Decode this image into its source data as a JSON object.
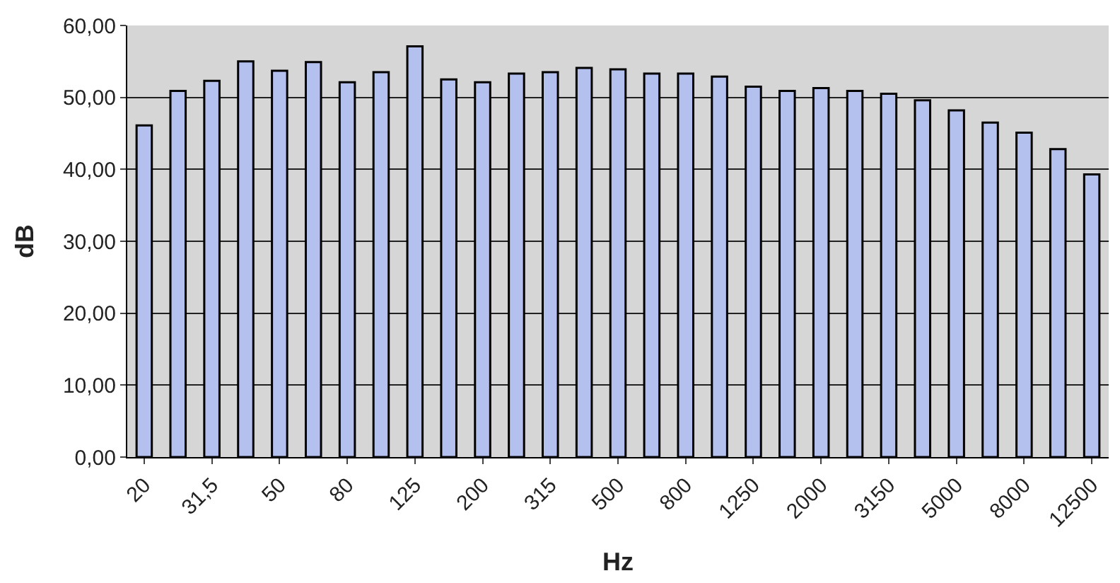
{
  "chart_data": {
    "type": "bar",
    "xlabel": "Hz",
    "ylabel": "dB",
    "categories": [
      "20",
      null,
      "31,5",
      null,
      "50",
      null,
      "80",
      null,
      "125",
      null,
      "200",
      null,
      "315",
      null,
      "500",
      null,
      "800",
      null,
      "1250",
      null,
      "2000",
      null,
      "3150",
      null,
      "5000",
      null,
      "8000",
      null,
      "12500"
    ],
    "values": [
      46.1,
      50.9,
      52.3,
      55.0,
      53.7,
      54.9,
      52.1,
      53.5,
      57.1,
      52.5,
      52.1,
      53.3,
      53.5,
      54.1,
      53.9,
      53.3,
      53.3,
      52.9,
      51.5,
      50.9,
      51.3,
      50.9,
      50.5,
      49.6,
      48.2,
      46.5,
      45.1,
      42.8,
      39.3
    ],
    "color": "#b4c0ee",
    "ylim": [
      0,
      60
    ],
    "yticks": [
      {
        "value": 0,
        "label": "0,00"
      },
      {
        "value": 10,
        "label": "10,00"
      },
      {
        "value": 20,
        "label": "20,00"
      },
      {
        "value": 30,
        "label": "30,00"
      },
      {
        "value": 40,
        "label": "40,00"
      },
      {
        "value": 50,
        "label": "50,00"
      },
      {
        "value": 60,
        "label": "60,00"
      }
    ],
    "grid": "y"
  }
}
